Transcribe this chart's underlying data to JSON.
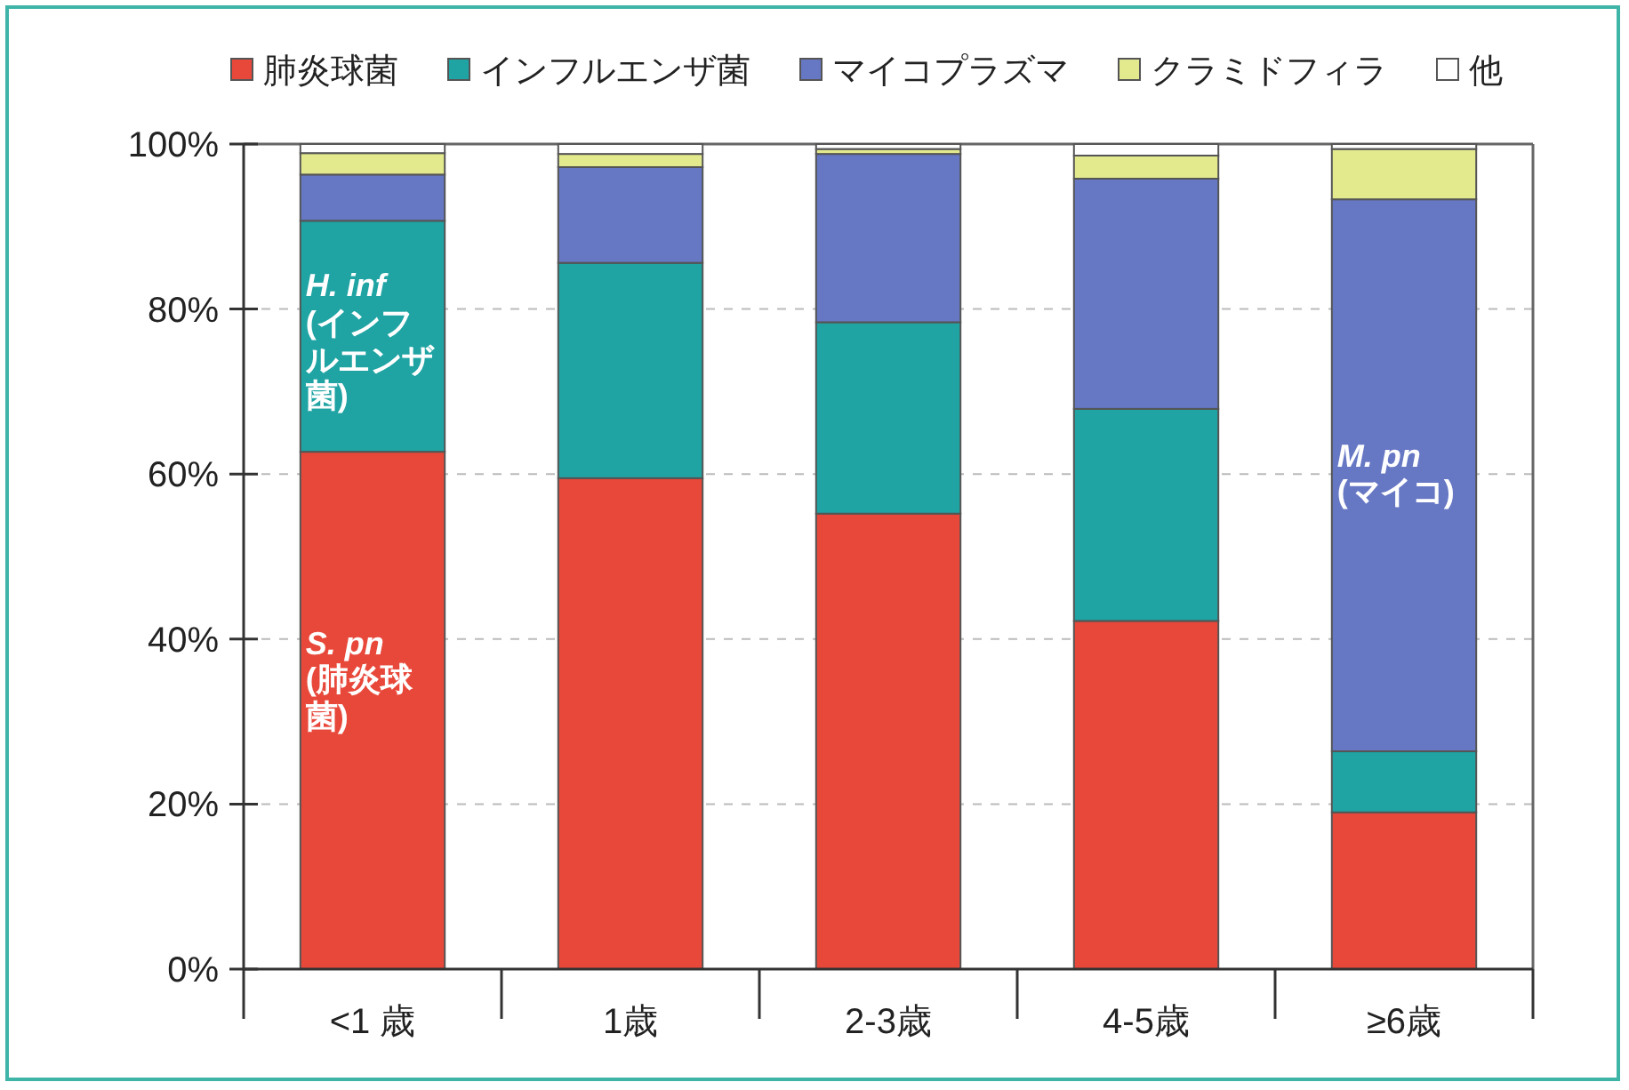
{
  "chart_data": {
    "type": "bar",
    "stacked": true,
    "categories": [
      "<1 歳",
      "1歳",
      "2-3歳",
      "4-5歳",
      "≥6歳"
    ],
    "series": [
      {
        "name": "肺炎球菌",
        "color": "#e8483a",
        "values": [
          62.7,
          59.5,
          55.2,
          42.2,
          19.0
        ]
      },
      {
        "name": "インフルエンザ菌",
        "color": "#1fa3a3",
        "values": [
          28.0,
          26.1,
          23.2,
          25.7,
          7.4
        ]
      },
      {
        "name": "マイコプラズマ",
        "color": "#6677c4",
        "values": [
          5.6,
          11.6,
          20.4,
          27.9,
          66.9
        ]
      },
      {
        "name": "クラミドフィラ",
        "color": "#e3ea8e",
        "values": [
          2.6,
          1.6,
          0.6,
          2.8,
          6.1
        ]
      },
      {
        "name": "他",
        "color": "#ffffff",
        "values": [
          1.1,
          1.2,
          0.6,
          1.4,
          0.6
        ]
      }
    ],
    "ylim": [
      0,
      100
    ],
    "yticks": [
      {
        "value": 0,
        "label": "0%"
      },
      {
        "value": 20,
        "label": "20%"
      },
      {
        "value": 40,
        "label": "40%"
      },
      {
        "value": 60,
        "label": "60%"
      },
      {
        "value": 80,
        "label": "80%"
      },
      {
        "value": 100,
        "label": "100%"
      }
    ],
    "grid": "y",
    "legend": "top",
    "annotations": [
      "*H. inf* (インフルエンザ菌)",
      "*S. pn* (肺炎球菌)",
      "*M. pn* (マイコ)"
    ]
  }
}
